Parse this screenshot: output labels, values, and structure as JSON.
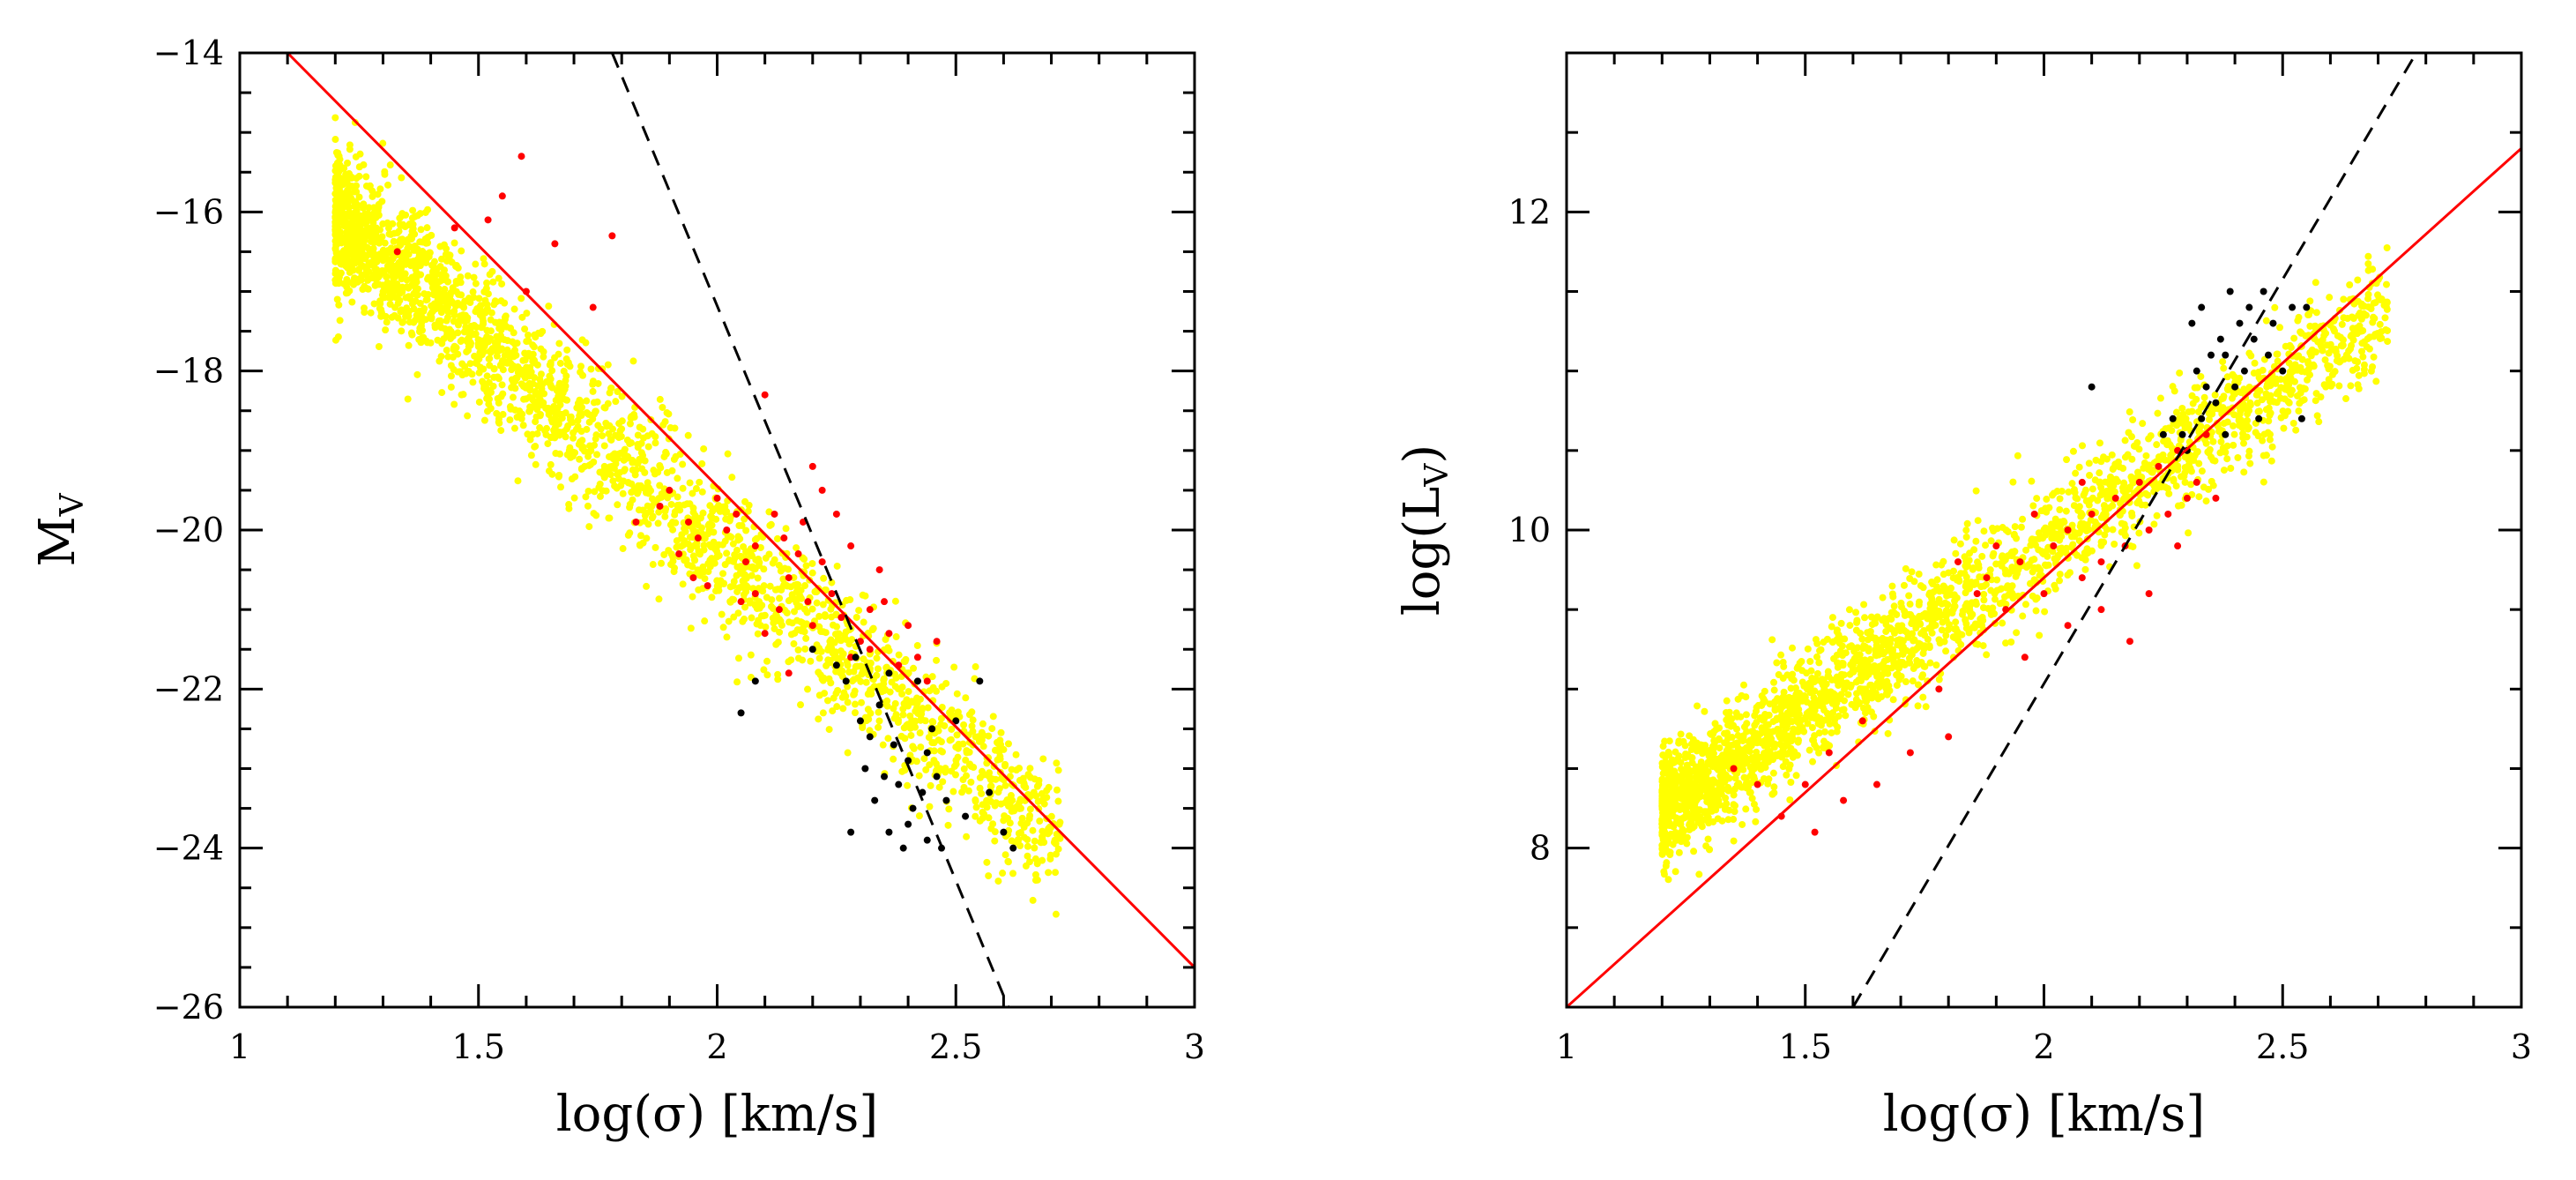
{
  "colors": {
    "fit_line": "#ff0000",
    "reference_line": "#000000",
    "yellow_points": "#ffff00",
    "red_points": "#ff0000",
    "black_points": "#000000"
  },
  "chart_data": [
    {
      "type": "scatter",
      "xlabel": "log(σ) [km/s]",
      "ylabel_main": "M",
      "ylabel_sub": "V",
      "xlim": [
        1,
        3
      ],
      "ylim": [
        -26,
        -14
      ],
      "xticks": [
        1,
        1.5,
        2,
        2.5,
        3
      ],
      "xtick_labels": [
        "1",
        "1.5",
        "2",
        "2.5",
        "3"
      ],
      "yticks": [
        -26,
        -24,
        -22,
        -20,
        -18,
        -16,
        -14
      ],
      "ytick_labels": [
        "−26",
        "−24",
        "−22",
        "−20",
        "−18",
        "−16",
        "−14"
      ],
      "series": [
        {
          "name": "yellow",
          "color": "#ffff00",
          "size": 3,
          "trend": {
            "slope": -5.2,
            "intercept": -9.8,
            "scatter": 0.45
          },
          "x_range": [
            1.2,
            2.72
          ]
        },
        {
          "name": "red",
          "color": "#ff0000",
          "size": 3,
          "points": [
            [
              1.33,
              -16.5
            ],
            [
              1.45,
              -16.2
            ],
            [
              1.52,
              -16.1
            ],
            [
              1.55,
              -15.8
            ],
            [
              1.59,
              -15.3
            ],
            [
              1.6,
              -17.0
            ],
            [
              1.66,
              -16.4
            ],
            [
              1.74,
              -17.2
            ],
            [
              1.78,
              -16.3
            ],
            [
              1.83,
              -19.9
            ],
            [
              1.88,
              -19.7
            ],
            [
              1.9,
              -19.5
            ],
            [
              1.92,
              -20.3
            ],
            [
              1.94,
              -19.9
            ],
            [
              1.96,
              -20.1
            ],
            [
              1.98,
              -20.7
            ],
            [
              2.0,
              -19.6
            ],
            [
              2.02,
              -20.0
            ],
            [
              2.04,
              -19.8
            ],
            [
              2.06,
              -20.4
            ],
            [
              2.08,
              -20.2
            ],
            [
              2.1,
              -18.3
            ],
            [
              2.12,
              -19.8
            ],
            [
              2.14,
              -20.1
            ],
            [
              2.15,
              -20.6
            ],
            [
              2.17,
              -20.3
            ],
            [
              2.19,
              -20.9
            ],
            [
              2.2,
              -21.2
            ],
            [
              2.22,
              -20.4
            ],
            [
              2.24,
              -20.8
            ],
            [
              2.26,
              -21.1
            ],
            [
              2.28,
              -20.2
            ],
            [
              2.3,
              -21.4
            ],
            [
              2.32,
              -21.0
            ],
            [
              2.34,
              -20.5
            ],
            [
              2.36,
              -21.3
            ],
            [
              2.38,
              -21.7
            ],
            [
              2.4,
              -21.2
            ],
            [
              2.42,
              -21.6
            ],
            [
              2.44,
              -21.9
            ],
            [
              2.46,
              -21.4
            ],
            [
              2.2,
              -19.2
            ],
            [
              2.25,
              -19.8
            ],
            [
              2.15,
              -21.8
            ],
            [
              2.1,
              -21.3
            ],
            [
              2.05,
              -20.9
            ],
            [
              1.95,
              -20.6
            ],
            [
              2.35,
              -20.9
            ],
            [
              2.28,
              -21.6
            ],
            [
              2.32,
              -21.5
            ],
            [
              2.18,
              -19.9
            ],
            [
              2.22,
              -19.5
            ],
            [
              2.08,
              -20.8
            ],
            [
              2.13,
              -21.0
            ]
          ]
        },
        {
          "name": "black",
          "color": "#000000",
          "size": 3,
          "points": [
            [
              2.05,
              -22.3
            ],
            [
              2.08,
              -21.9
            ],
            [
              2.2,
              -21.5
            ],
            [
              2.25,
              -21.7
            ],
            [
              2.27,
              -21.9
            ],
            [
              2.29,
              -21.6
            ],
            [
              2.3,
              -22.4
            ],
            [
              2.31,
              -23.0
            ],
            [
              2.33,
              -23.4
            ],
            [
              2.34,
              -22.2
            ],
            [
              2.35,
              -23.1
            ],
            [
              2.36,
              -23.8
            ],
            [
              2.37,
              -22.7
            ],
            [
              2.38,
              -23.2
            ],
            [
              2.39,
              -24.0
            ],
            [
              2.4,
              -22.9
            ],
            [
              2.41,
              -23.5
            ],
            [
              2.42,
              -21.9
            ],
            [
              2.43,
              -23.3
            ],
            [
              2.44,
              -23.9
            ],
            [
              2.45,
              -22.5
            ],
            [
              2.46,
              -23.1
            ],
            [
              2.47,
              -24.0
            ],
            [
              2.48,
              -23.4
            ],
            [
              2.5,
              -22.4
            ],
            [
              2.52,
              -23.6
            ],
            [
              2.55,
              -21.9
            ],
            [
              2.57,
              -23.3
            ],
            [
              2.6,
              -23.8
            ],
            [
              2.62,
              -24.0
            ],
            [
              2.28,
              -23.8
            ],
            [
              2.32,
              -22.6
            ],
            [
              2.36,
              -21.8
            ],
            [
              2.4,
              -23.7
            ],
            [
              2.44,
              -22.8
            ]
          ]
        }
      ],
      "lines": [
        {
          "name": "fit",
          "color": "#ff0000",
          "style": "solid",
          "points": [
            [
              1.1,
              -14
            ],
            [
              3,
              -25.5
            ]
          ]
        },
        {
          "name": "reference",
          "color": "#000000",
          "style": "dashed",
          "points": [
            [
              1.78,
              -14
            ],
            [
              2.61,
              -26
            ]
          ]
        }
      ]
    },
    {
      "type": "scatter",
      "xlabel": "log(σ) [km/s]",
      "ylabel_main": "log(L",
      "ylabel_sub": "V",
      "ylabel_end": ")",
      "xlim": [
        1,
        3
      ],
      "ylim": [
        7,
        13
      ],
      "xticks": [
        1,
        1.5,
        2,
        2.5,
        3
      ],
      "xtick_labels": [
        "1",
        "1.5",
        "2",
        "2.5",
        "3"
      ],
      "yticks": [
        8,
        10,
        12
      ],
      "ytick_labels": [
        "8",
        "10",
        "12"
      ],
      "series": [
        {
          "name": "yellow",
          "color": "#ffff00",
          "size": 3,
          "trend": {
            "slope": 2.08,
            "intercept": 5.74,
            "scatter": 0.18
          },
          "x_range": [
            1.2,
            2.72
          ]
        },
        {
          "name": "red",
          "color": "#ff0000",
          "size": 3,
          "points": [
            [
              1.35,
              8.5
            ],
            [
              1.4,
              8.4
            ],
            [
              1.45,
              8.2
            ],
            [
              1.5,
              8.4
            ],
            [
              1.52,
              8.1
            ],
            [
              1.55,
              8.6
            ],
            [
              1.58,
              8.3
            ],
            [
              1.62,
              8.8
            ],
            [
              1.65,
              8.4
            ],
            [
              1.72,
              8.6
            ],
            [
              1.78,
              9.0
            ],
            [
              1.8,
              8.7
            ],
            [
              1.82,
              9.8
            ],
            [
              1.86,
              9.6
            ],
            [
              1.88,
              9.7
            ],
            [
              1.9,
              9.9
            ],
            [
              1.92,
              9.5
            ],
            [
              1.95,
              9.8
            ],
            [
              1.98,
              10.1
            ],
            [
              2.0,
              9.6
            ],
            [
              2.02,
              9.9
            ],
            [
              2.05,
              10.0
            ],
            [
              2.08,
              9.7
            ],
            [
              2.1,
              10.1
            ],
            [
              2.12,
              9.8
            ],
            [
              2.15,
              10.2
            ],
            [
              2.17,
              9.9
            ],
            [
              2.2,
              10.3
            ],
            [
              2.22,
              10.0
            ],
            [
              2.24,
              10.4
            ],
            [
              2.26,
              10.1
            ],
            [
              2.28,
              10.5
            ],
            [
              2.3,
              10.2
            ],
            [
              2.32,
              10.3
            ],
            [
              2.34,
              10.6
            ],
            [
              2.36,
              10.2
            ],
            [
              2.12,
              9.5
            ],
            [
              2.18,
              9.3
            ],
            [
              2.22,
              9.6
            ],
            [
              2.05,
              9.4
            ],
            [
              1.96,
              9.2
            ],
            [
              2.08,
              10.3
            ],
            [
              2.28,
              9.9
            ]
          ]
        },
        {
          "name": "black",
          "color": "#000000",
          "size": 3,
          "points": [
            [
              2.1,
              10.9
            ],
            [
              2.25,
              10.6
            ],
            [
              2.27,
              10.7
            ],
            [
              2.29,
              10.6
            ],
            [
              2.3,
              10.5
            ],
            [
              2.31,
              11.3
            ],
            [
              2.32,
              11.0
            ],
            [
              2.33,
              11.4
            ],
            [
              2.34,
              10.9
            ],
            [
              2.35,
              11.1
            ],
            [
              2.36,
              10.8
            ],
            [
              2.37,
              11.2
            ],
            [
              2.38,
              10.6
            ],
            [
              2.39,
              11.5
            ],
            [
              2.4,
              10.9
            ],
            [
              2.41,
              11.3
            ],
            [
              2.42,
              11.0
            ],
            [
              2.43,
              11.4
            ],
            [
              2.44,
              11.2
            ],
            [
              2.45,
              10.7
            ],
            [
              2.46,
              11.5
            ],
            [
              2.47,
              11.1
            ],
            [
              2.48,
              11.3
            ],
            [
              2.5,
              11.0
            ],
            [
              2.52,
              11.4
            ],
            [
              2.54,
              10.7
            ],
            [
              2.55,
              11.4
            ],
            [
              2.38,
              11.1
            ],
            [
              2.33,
              10.7
            ]
          ]
        }
      ],
      "lines": [
        {
          "name": "fit",
          "color": "#ff0000",
          "style": "solid",
          "points": [
            [
              1,
              7
            ],
            [
              3,
              12.4
            ]
          ]
        },
        {
          "name": "reference",
          "color": "#000000",
          "style": "dashed",
          "points": [
            [
              1.6,
              7
            ],
            [
              2.78,
              13
            ]
          ]
        }
      ]
    }
  ]
}
